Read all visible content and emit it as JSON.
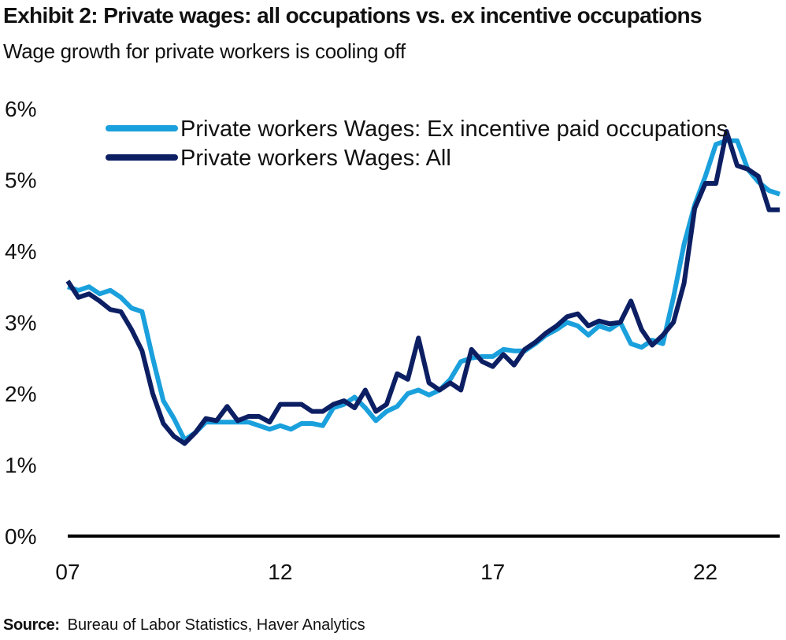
{
  "title": "Exhibit 2: Private wages: all occupations vs. ex incentive occupations",
  "subtitle": "Wage growth for private workers is cooling off",
  "source": {
    "label": "Source:",
    "text": "Bureau of Labor Statistics, Haver Analytics"
  },
  "colors": {
    "ex_incentive": "#1aa0dc",
    "all": "#0d1f63",
    "axis": "#000000"
  },
  "chart_data": {
    "type": "line",
    "x_tick_labels": [
      "07",
      "12",
      "17",
      "22"
    ],
    "x_ticks": [
      2007,
      2012,
      2017,
      2022
    ],
    "xlim": [
      2007,
      2023.75
    ],
    "y_tick_labels": [
      "0%",
      "1%",
      "2%",
      "3%",
      "4%",
      "5%",
      "6%"
    ],
    "ylim": [
      0,
      6
    ],
    "grid": false,
    "legend_position": "top-right",
    "x": [
      2007.0,
      2007.25,
      2007.5,
      2007.75,
      2008.0,
      2008.25,
      2008.5,
      2008.75,
      2009.0,
      2009.25,
      2009.5,
      2009.75,
      2010.0,
      2010.25,
      2010.5,
      2010.75,
      2011.0,
      2011.25,
      2011.5,
      2011.75,
      2012.0,
      2012.25,
      2012.5,
      2012.75,
      2013.0,
      2013.25,
      2013.5,
      2013.75,
      2014.0,
      2014.25,
      2014.5,
      2014.75,
      2015.0,
      2015.25,
      2015.5,
      2015.75,
      2016.0,
      2016.25,
      2016.5,
      2016.75,
      2017.0,
      2017.25,
      2017.5,
      2017.75,
      2018.0,
      2018.25,
      2018.5,
      2018.75,
      2019.0,
      2019.25,
      2019.5,
      2019.75,
      2020.0,
      2020.25,
      2020.5,
      2020.75,
      2021.0,
      2021.25,
      2021.5,
      2021.75,
      2022.0,
      2022.25,
      2022.5,
      2022.75,
      2023.0,
      2023.25,
      2023.5,
      2023.75
    ],
    "series": [
      {
        "name": "Private workers Wages: Ex incentive paid occupations",
        "color_key": "ex_incentive",
        "values": [
          3.5,
          3.45,
          3.5,
          3.4,
          3.45,
          3.35,
          3.2,
          3.15,
          2.5,
          1.9,
          1.65,
          1.35,
          1.45,
          1.6,
          1.6,
          1.6,
          1.6,
          1.6,
          1.55,
          1.5,
          1.55,
          1.5,
          1.58,
          1.58,
          1.55,
          1.8,
          1.85,
          1.95,
          1.8,
          1.62,
          1.75,
          1.82,
          2.0,
          2.05,
          1.98,
          2.05,
          2.2,
          2.45,
          2.5,
          2.52,
          2.52,
          2.62,
          2.6,
          2.6,
          2.7,
          2.82,
          2.9,
          3.0,
          2.95,
          2.82,
          2.95,
          2.9,
          3.0,
          2.7,
          2.65,
          2.75,
          2.7,
          3.35,
          4.1,
          4.65,
          5.05,
          5.5,
          5.55,
          5.55,
          5.15,
          4.97,
          4.85,
          4.8
        ]
      },
      {
        "name": "Private workers Wages: All",
        "color_key": "all",
        "values": [
          3.58,
          3.35,
          3.4,
          3.3,
          3.18,
          3.15,
          2.9,
          2.6,
          2.0,
          1.58,
          1.4,
          1.3,
          1.45,
          1.65,
          1.62,
          1.82,
          1.62,
          1.68,
          1.68,
          1.6,
          1.85,
          1.85,
          1.85,
          1.75,
          1.75,
          1.85,
          1.9,
          1.8,
          2.05,
          1.75,
          1.85,
          2.28,
          2.2,
          2.78,
          2.15,
          2.05,
          2.15,
          2.05,
          2.62,
          2.45,
          2.38,
          2.55,
          2.4,
          2.62,
          2.72,
          2.85,
          2.95,
          3.08,
          3.12,
          2.95,
          3.02,
          2.98,
          3.0,
          3.3,
          2.9,
          2.68,
          2.82,
          3.0,
          3.55,
          4.6,
          4.95,
          4.95,
          5.68,
          5.2,
          5.15,
          5.05,
          4.58,
          4.58
        ]
      }
    ]
  }
}
